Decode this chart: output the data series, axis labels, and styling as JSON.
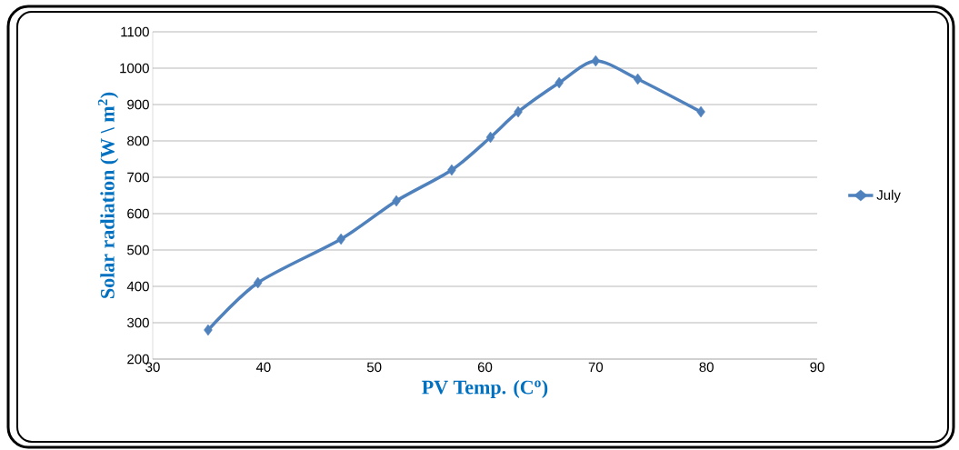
{
  "chart_data": {
    "type": "line",
    "xlabel": "PV  Temp. (C$^{o}$)",
    "ylabel": "Solar radiation (W \\ m$^{2}$)",
    "x": [
      35,
      39.5,
      47,
      52,
      57,
      60.5,
      63,
      66.7,
      70,
      73.8,
      79.5
    ],
    "series": [
      {
        "name": "July",
        "color": "#4f81bd",
        "values": [
          280,
          410,
          530,
          635,
          720,
          810,
          880,
          960,
          1020,
          970,
          880
        ]
      }
    ],
    "xlim": [
      30,
      90
    ],
    "xticks": [
      30,
      40,
      50,
      60,
      70,
      80,
      90
    ],
    "ylim": [
      200,
      1100
    ],
    "yticks": [
      200,
      300,
      400,
      500,
      600,
      700,
      800,
      900,
      1000,
      1100
    ],
    "grid": "y",
    "legend": "right",
    "marker": "diamond",
    "line_style": "solid"
  }
}
